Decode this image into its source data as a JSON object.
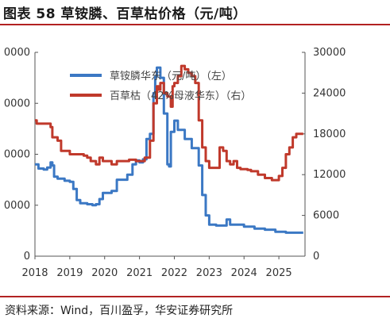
{
  "title": "图表 58 草铵膦、百草枯价格（元/吨）",
  "source": "资料来源：Wind，百川盈孚，华安证券研究所",
  "chart_data": {
    "type": "line",
    "xticks": [
      "2018",
      "2019",
      "2020",
      "2021",
      "2022",
      "2023",
      "2024",
      "2025"
    ],
    "left_yticks": [
      "0",
      "0000",
      "0000",
      "0000",
      "0000"
    ],
    "right_yticks": [
      "0",
      "6000",
      "12000",
      "18000",
      "24000",
      "30000"
    ],
    "left_ylim": [
      0,
      200000
    ],
    "right_ylim": [
      0,
      30000
    ],
    "xlim": [
      2018.0,
      2025.75
    ],
    "series": [
      {
        "name": "草铵膦华东（元/吨）（左）",
        "axis": "left",
        "color": "#3b78c4",
        "x": [
          2018.0,
          2018.1,
          2018.25,
          2018.35,
          2018.45,
          2018.5,
          2018.55,
          2018.65,
          2018.85,
          2019.0,
          2019.1,
          2019.2,
          2019.3,
          2019.5,
          2019.65,
          2019.75,
          2019.85,
          2019.95,
          2020.1,
          2020.2,
          2020.35,
          2020.5,
          2020.65,
          2020.8,
          2020.9,
          2021.0,
          2021.1,
          2021.2,
          2021.3,
          2021.4,
          2021.45,
          2021.5,
          2021.6,
          2021.7,
          2021.8,
          2021.85,
          2021.9,
          2022.0,
          2022.1,
          2022.3,
          2022.5,
          2022.7,
          2022.8,
          2022.9,
          2023.0,
          2023.2,
          2023.4,
          2023.5,
          2023.6,
          2024.0,
          2024.3,
          2024.6,
          2024.9,
          2025.2,
          2025.5,
          2025.7
        ],
        "values": [
          90000,
          86000,
          85000,
          87000,
          92000,
          89000,
          78000,
          76000,
          74000,
          73000,
          66000,
          55000,
          52000,
          51000,
          50000,
          51000,
          56000,
          62000,
          62000,
          64000,
          75000,
          75000,
          80000,
          90000,
          94000,
          92000,
          95000,
          115000,
          120000,
          160000,
          176000,
          185000,
          175000,
          140000,
          90000,
          88000,
          122000,
          133000,
          124000,
          115000,
          106000,
          89000,
          60000,
          40000,
          31000,
          30000,
          30000,
          36000,
          31000,
          29000,
          27000,
          26000,
          24000,
          23000,
          23000,
          23000
        ]
      },
      {
        "name": "百草枯（42%母液华东）（右）",
        "axis": "right",
        "color": "#c0392b",
        "x": [
          2018.0,
          2018.05,
          2018.1,
          2018.25,
          2018.45,
          2018.5,
          2018.65,
          2018.75,
          2018.85,
          2019.0,
          2019.2,
          2019.4,
          2019.5,
          2019.6,
          2019.75,
          2019.85,
          2019.95,
          2020.1,
          2020.2,
          2020.35,
          2020.5,
          2020.7,
          2020.9,
          2021.0,
          2021.15,
          2021.3,
          2021.4,
          2021.5,
          2021.55,
          2021.6,
          2021.7,
          2021.8,
          2021.9,
          2021.95,
          2022.0,
          2022.1,
          2022.2,
          2022.3,
          2022.4,
          2022.5,
          2022.6,
          2022.7,
          2022.8,
          2022.9,
          2023.0,
          2023.15,
          2023.3,
          2023.4,
          2023.5,
          2023.6,
          2023.7,
          2023.8,
          2023.9,
          2024.0,
          2024.1,
          2024.2,
          2024.4,
          2024.6,
          2024.8,
          2024.9,
          2025.0,
          2025.1,
          2025.2,
          2025.3,
          2025.4,
          2025.5,
          2025.7
        ],
        "values": [
          20000,
          19500,
          19500,
          19500,
          19000,
          17500,
          17000,
          15500,
          15500,
          15000,
          15000,
          14800,
          14500,
          14000,
          13500,
          14500,
          14000,
          14000,
          13500,
          14000,
          14000,
          14200,
          14000,
          14000,
          14500,
          17000,
          22500,
          25000,
          24500,
          25500,
          24000,
          23500,
          22000,
          25000,
          25500,
          26500,
          28000,
          27500,
          27000,
          26500,
          25500,
          20000,
          16000,
          14000,
          13000,
          13000,
          16000,
          15500,
          14000,
          13500,
          14000,
          13000,
          12800,
          12800,
          12700,
          12500,
          12000,
          11500,
          11200,
          11200,
          11800,
          13000,
          15000,
          16000,
          17500,
          18000,
          18000
        ]
      }
    ],
    "legend_position": "top-center"
  }
}
